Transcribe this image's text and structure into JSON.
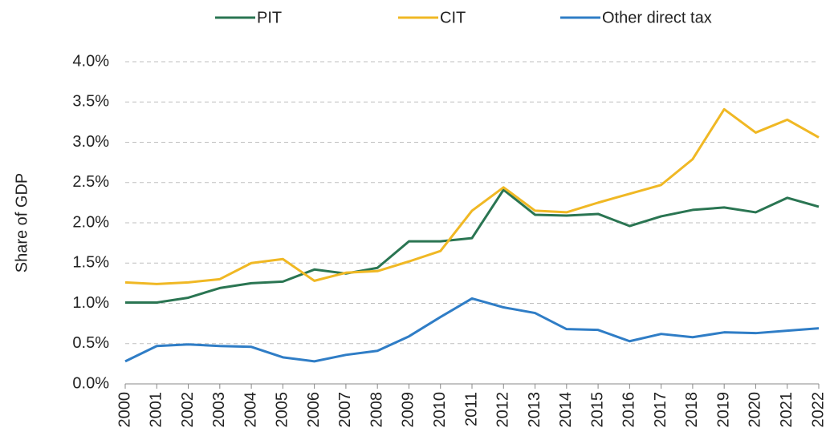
{
  "chart_data": {
    "type": "line",
    "y_label": "Share of GDP",
    "categories": [
      "2000",
      "2001",
      "2002",
      "2003",
      "2004",
      "2005",
      "2006",
      "2007",
      "2008",
      "2009",
      "2010",
      "2011",
      "2012",
      "2013",
      "2014",
      "2015",
      "2016",
      "2017",
      "2018",
      "2019",
      "2020",
      "2021",
      "2022"
    ],
    "series": [
      {
        "name": "PIT",
        "color": "#2a7552",
        "values": [
          1.01,
          1.01,
          1.07,
          1.19,
          1.25,
          1.27,
          1.42,
          1.37,
          1.44,
          1.77,
          1.77,
          1.81,
          2.41,
          2.1,
          2.09,
          2.11,
          1.96,
          2.08,
          2.16,
          2.19,
          2.13,
          2.31,
          2.2
        ]
      },
      {
        "name": "CIT",
        "color": "#f0b824",
        "values": [
          1.26,
          1.24,
          1.26,
          1.3,
          1.5,
          1.55,
          1.28,
          1.38,
          1.4,
          1.52,
          1.65,
          2.15,
          2.44,
          2.15,
          2.13,
          2.25,
          2.36,
          2.47,
          2.79,
          3.41,
          3.12,
          3.28,
          3.06
        ]
      },
      {
        "name": "Other direct tax",
        "color": "#2f7dc6",
        "values": [
          0.28,
          0.47,
          0.49,
          0.47,
          0.46,
          0.33,
          0.28,
          0.36,
          0.41,
          0.59,
          0.83,
          1.06,
          0.95,
          0.88,
          0.68,
          0.67,
          0.53,
          0.62,
          0.58,
          0.64,
          0.63,
          0.66,
          0.69
        ]
      }
    ],
    "ylim": [
      0,
      4
    ],
    "yticks": [
      {
        "value": 0,
        "label": "0.0%"
      },
      {
        "value": 0.5,
        "label": "0.5%"
      },
      {
        "value": 1,
        "label": "1.0%"
      },
      {
        "value": 1.5,
        "label": "1.5%"
      },
      {
        "value": 2,
        "label": "2.0%"
      },
      {
        "value": 2.5,
        "label": "2.5%"
      },
      {
        "value": 3,
        "label": "3.0%"
      },
      {
        "value": 3.5,
        "label": "3.5%"
      },
      {
        "value": 4,
        "label": "4.0%"
      }
    ],
    "grid": true,
    "legend": "top"
  }
}
